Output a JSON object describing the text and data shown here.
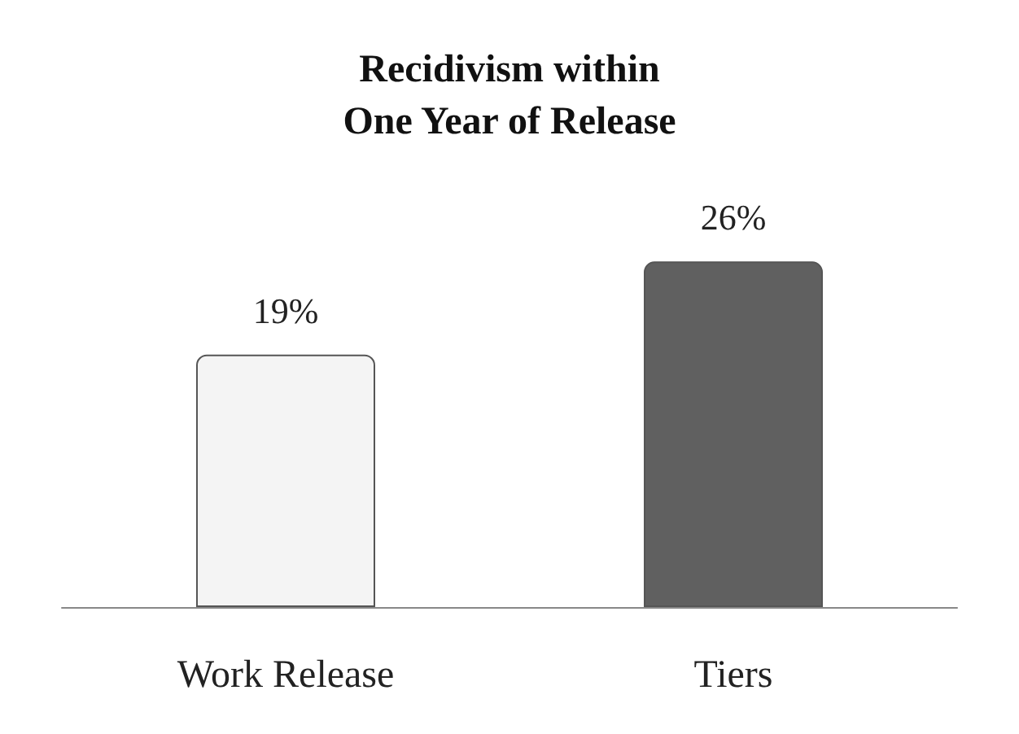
{
  "chart_data": {
    "type": "bar",
    "title": "Recidivism within\nOne Year of Release",
    "categories": [
      "Work Release",
      "Tiers"
    ],
    "values": [
      19,
      26
    ],
    "value_labels": [
      "19%",
      "26%"
    ],
    "colors": [
      "#f4f4f4",
      "#606060"
    ]
  }
}
